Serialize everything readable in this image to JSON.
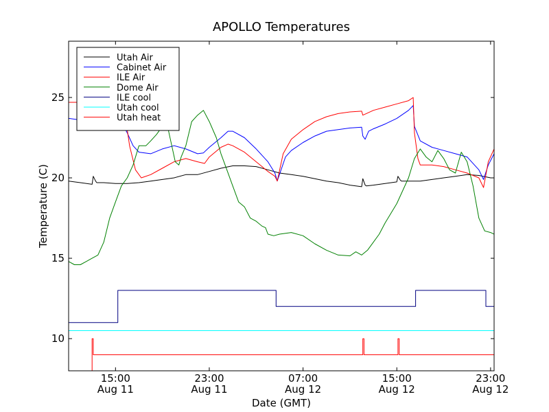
{
  "chart_data": {
    "type": "line",
    "title": "APOLLO Temperatures",
    "xlabel": "Date (GMT)",
    "ylabel": "Temperature (C)",
    "x_unit": "hours since 2012-08-11 00:00 GMT",
    "xlim": [
      11.0,
      47.3
    ],
    "ylim": [
      8,
      28.5
    ],
    "grid": false,
    "legend_position": "top-left",
    "x_ticks": [
      {
        "value": 15,
        "line1": "15:00",
        "line2": "Aug 11"
      },
      {
        "value": 23,
        "line1": "23:00",
        "line2": "Aug 11"
      },
      {
        "value": 31,
        "line1": "07:00",
        "line2": "Aug 12"
      },
      {
        "value": 39,
        "line1": "15:00",
        "line2": "Aug 12"
      },
      {
        "value": 47,
        "line1": "23:00",
        "line2": "Aug 12"
      }
    ],
    "y_ticks": [
      {
        "value": 10,
        "label": "10"
      },
      {
        "value": 15,
        "label": "15"
      },
      {
        "value": 20,
        "label": "20"
      },
      {
        "value": 25,
        "label": "25"
      }
    ],
    "series": [
      {
        "name": "Utah Air",
        "color": "#000000",
        "step": false,
        "x": [
          11.0,
          12.0,
          13.0,
          13.1,
          13.3,
          13.4,
          14.0,
          15.0,
          16.0,
          17.0,
          18.0,
          19.0,
          20.0,
          21.0,
          22.0,
          23.0,
          24.0,
          25.0,
          26.0,
          27.0,
          28.0,
          29.0,
          30.0,
          31.0,
          32.0,
          33.0,
          34.0,
          35.0,
          36.0,
          36.1,
          36.3,
          36.4,
          37.0,
          38.0,
          39.0,
          39.1,
          39.3,
          39.4,
          40.0,
          41.0,
          42.0,
          43.0,
          44.0,
          45.0,
          46.0,
          47.0,
          47.3
        ],
        "y": [
          19.8,
          19.7,
          19.6,
          20.1,
          19.8,
          19.7,
          19.7,
          19.65,
          19.65,
          19.7,
          19.8,
          19.9,
          20.0,
          20.2,
          20.2,
          20.4,
          20.6,
          20.75,
          20.75,
          20.7,
          20.5,
          20.3,
          20.2,
          20.1,
          19.95,
          19.8,
          19.7,
          19.55,
          19.45,
          19.95,
          19.55,
          19.5,
          19.55,
          19.65,
          19.75,
          20.1,
          19.85,
          19.8,
          19.8,
          19.8,
          19.9,
          20.0,
          20.1,
          20.2,
          20.15,
          20.0,
          20.0
        ]
      },
      {
        "name": "Cabinet Air",
        "color": "#0000ff",
        "step": false,
        "x": [
          11.0,
          12.0,
          13.0,
          14.0,
          15.0,
          15.4,
          16.0,
          16.5,
          17.0,
          18.0,
          19.0,
          20.0,
          21.0,
          22.0,
          22.5,
          23.0,
          24.0,
          24.6,
          25.0,
          26.0,
          27.0,
          28.0,
          28.6,
          28.8,
          29.5,
          30.0,
          31.0,
          32.0,
          33.0,
          34.0,
          35.0,
          36.0,
          36.1,
          36.3,
          36.6,
          37.0,
          38.0,
          39.0,
          40.0,
          40.4,
          40.5,
          41.0,
          42.0,
          43.0,
          44.0,
          45.0,
          46.0,
          46.4,
          46.8,
          47.3
        ],
        "y": [
          23.7,
          23.6,
          23.5,
          23.5,
          23.6,
          23.6,
          22.8,
          22.0,
          21.6,
          21.5,
          21.8,
          22.0,
          21.8,
          21.5,
          21.55,
          21.9,
          22.5,
          22.9,
          22.9,
          22.5,
          21.8,
          21.0,
          20.3,
          19.8,
          21.3,
          21.7,
          22.2,
          22.6,
          22.9,
          23.0,
          23.1,
          23.15,
          22.6,
          22.4,
          22.9,
          23.05,
          23.35,
          23.7,
          24.2,
          24.5,
          23.2,
          22.3,
          21.9,
          21.7,
          21.5,
          21.3,
          20.5,
          19.9,
          20.8,
          21.5
        ]
      },
      {
        "name": "ILE Air",
        "color": "#ff0000",
        "step": false,
        "x": [
          11.0,
          12.0,
          13.0,
          14.0,
          15.0,
          15.4,
          15.8,
          16.2,
          16.7,
          17.2,
          18.0,
          19.0,
          20.0,
          21.0,
          22.0,
          22.6,
          23.0,
          24.0,
          24.6,
          25.0,
          26.0,
          27.0,
          28.0,
          28.6,
          28.8,
          29.3,
          30.0,
          31.0,
          32.0,
          33.0,
          34.0,
          35.0,
          36.0,
          36.1,
          36.4,
          37.0,
          38.0,
          39.0,
          40.0,
          40.4,
          40.5,
          40.8,
          41.0,
          42.0,
          43.0,
          44.0,
          45.0,
          46.0,
          46.4,
          46.8,
          47.3
        ],
        "y": [
          24.7,
          24.7,
          24.7,
          24.7,
          24.7,
          24.7,
          24.0,
          22.0,
          20.5,
          20.0,
          20.2,
          20.6,
          21.0,
          21.2,
          21.0,
          20.9,
          21.3,
          21.9,
          22.1,
          22.0,
          21.6,
          21.0,
          20.4,
          20.1,
          19.8,
          21.5,
          22.4,
          23.0,
          23.5,
          23.8,
          24.0,
          24.1,
          24.15,
          23.9,
          24.0,
          24.2,
          24.4,
          24.6,
          24.8,
          25.0,
          22.8,
          21.2,
          20.8,
          20.8,
          20.7,
          20.5,
          20.3,
          20.0,
          19.4,
          21.0,
          21.8
        ]
      },
      {
        "name": "Dome Air",
        "color": "#008000",
        "step": false,
        "x": [
          11.0,
          11.5,
          12.0,
          13.0,
          13.5,
          14.0,
          14.5,
          15.0,
          15.5,
          16.0,
          16.5,
          17.0,
          17.6,
          18.0,
          18.5,
          19.0,
          19.5,
          19.8,
          20.1,
          20.4,
          20.6,
          21.0,
          21.5,
          22.0,
          22.5,
          23.0,
          23.6,
          24.0,
          24.5,
          25.0,
          25.5,
          26.0,
          26.5,
          27.0,
          27.5,
          27.8,
          28.0,
          28.5,
          29.0,
          30.0,
          31.0,
          32.0,
          33.0,
          34.0,
          35.0,
          35.5,
          36.0,
          36.5,
          37.0,
          37.5,
          38.0,
          39.0,
          40.0,
          40.5,
          41.0,
          41.5,
          42.0,
          42.5,
          43.0,
          43.5,
          44.0,
          44.5,
          45.0,
          45.5,
          46.0,
          46.5,
          47.0,
          47.3
        ],
        "y": [
          14.8,
          14.6,
          14.6,
          15.0,
          15.2,
          16.0,
          17.5,
          18.5,
          19.5,
          20.0,
          20.8,
          22.0,
          22.0,
          22.3,
          22.7,
          23.2,
          23.0,
          22.0,
          21.0,
          20.8,
          21.3,
          22.0,
          23.5,
          23.9,
          24.2,
          23.5,
          22.5,
          21.5,
          20.5,
          19.5,
          18.5,
          18.2,
          17.5,
          17.3,
          17.0,
          16.9,
          16.5,
          16.4,
          16.5,
          16.6,
          16.4,
          15.9,
          15.5,
          15.2,
          15.15,
          15.4,
          15.2,
          15.5,
          16.0,
          16.5,
          17.2,
          18.4,
          20.0,
          21.2,
          21.8,
          21.3,
          21.0,
          21.7,
          21.2,
          20.5,
          20.3,
          21.6,
          21.0,
          19.5,
          17.5,
          16.7,
          16.6,
          16.5
        ]
      },
      {
        "name": "ILE cool",
        "color": "#000080",
        "step": true,
        "x": [
          11.0,
          15.2,
          15.2,
          28.7,
          28.7,
          40.6,
          40.6,
          46.6,
          46.6,
          47.3
        ],
        "y": [
          11.0,
          11.0,
          13.0,
          13.0,
          12.0,
          12.0,
          13.0,
          13.0,
          12.0,
          12.0
        ]
      },
      {
        "name": "Utah cool",
        "color": "#00ffff",
        "step": true,
        "x": [
          11.0,
          47.3
        ],
        "y": [
          10.5,
          10.5
        ]
      },
      {
        "name": "Utah heat",
        "color": "#ff0000",
        "step": true,
        "x": [
          13.0,
          13.0,
          13.1,
          13.1,
          36.1,
          36.1,
          36.2,
          36.2,
          39.1,
          39.1,
          39.2,
          39.2,
          47.3
        ],
        "y": [
          8.0,
          10.0,
          10.0,
          9.0,
          9.0,
          10.0,
          10.0,
          9.0,
          9.0,
          10.0,
          10.0,
          9.0,
          9.0
        ]
      }
    ]
  }
}
